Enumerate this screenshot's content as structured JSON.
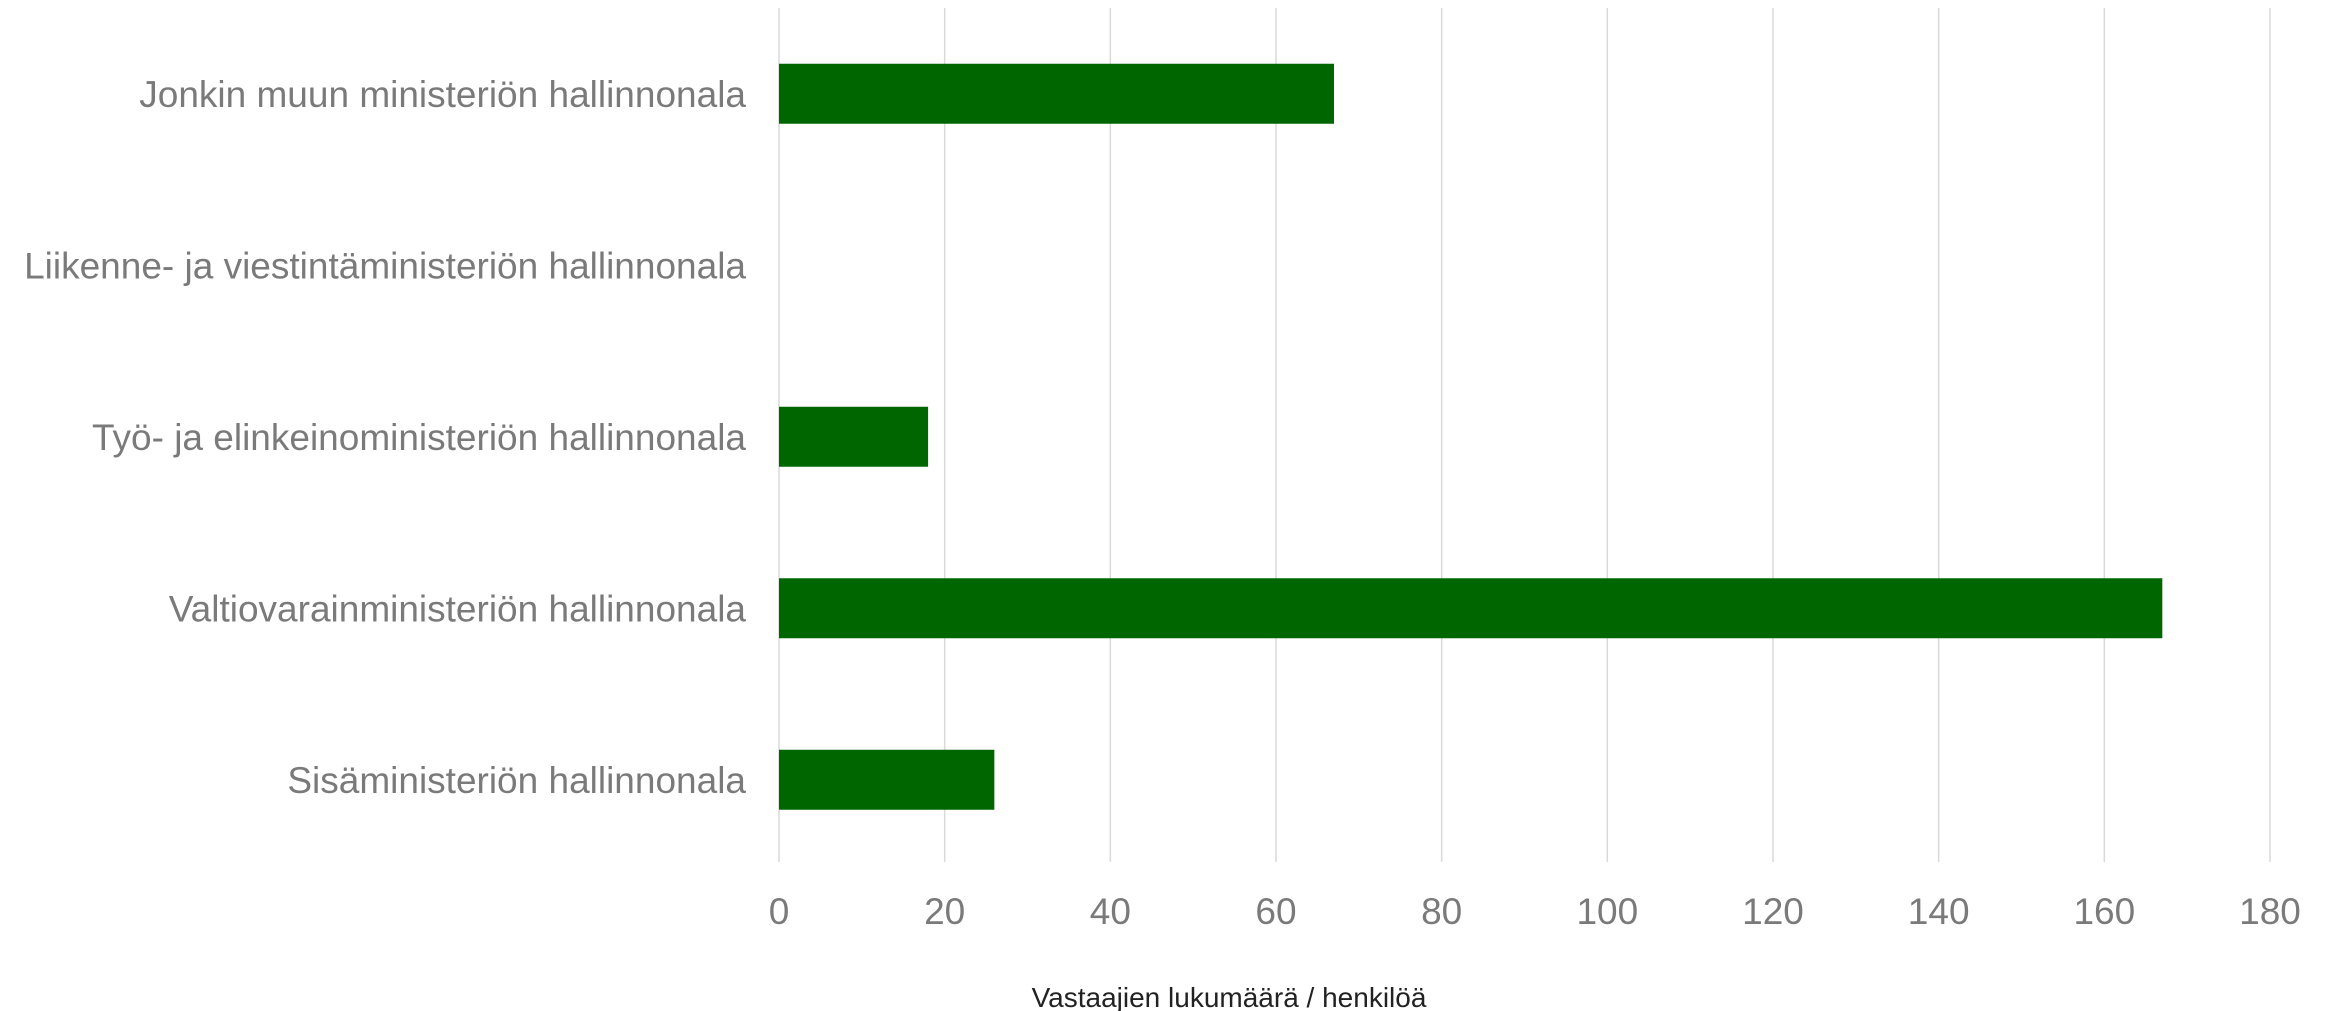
{
  "chart_data": {
    "type": "bar",
    "orientation": "horizontal",
    "categories": [
      "Jonkin muun ministeriön hallinnonala",
      "Liikenne- ja viestintäministeriön hallinnonala",
      "Työ- ja elinkeinoministeriön hallinnonala",
      "Valtiovarainministeriön hallinnonala",
      "Sisäministeriön hallinnonala"
    ],
    "values": [
      67,
      0,
      18,
      167,
      26
    ],
    "xlabel": "Vastaajien lukumäärä / henkilöä",
    "ylabel": "",
    "title": "",
    "xlim": [
      0,
      180
    ],
    "xticks": [
      0,
      20,
      40,
      60,
      80,
      100,
      120,
      140,
      160,
      180
    ],
    "xtick_labels": [
      "0",
      "20",
      "40",
      "60",
      "80",
      "100",
      "120",
      "140",
      "160",
      "180"
    ],
    "grid": "vertical",
    "legend": "none",
    "colors": {
      "bar": "#006600",
      "grid": "#d9d9d9",
      "label_text": "#7a7a7a",
      "axis_title_text": "#222222"
    }
  }
}
